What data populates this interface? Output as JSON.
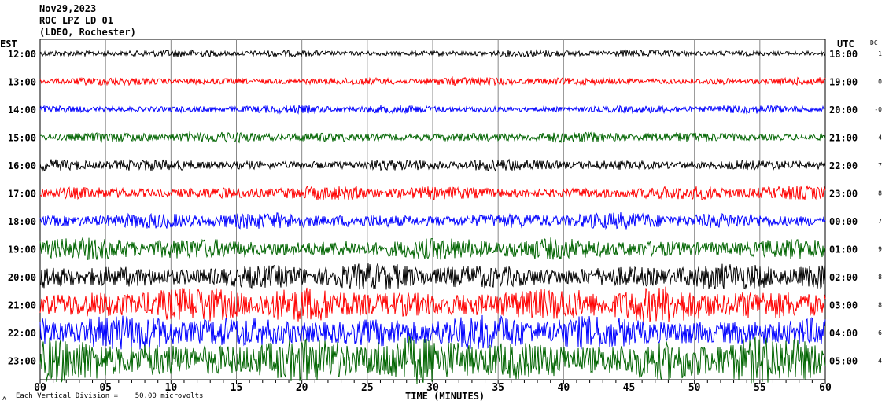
{
  "header": {
    "date": "Nov29,2023",
    "station": "ROC LPZ LD 01",
    "network": "(LDEO, Rochester)"
  },
  "footer": {
    "scale_note": "Each Vertical Division =    50.00 microvolts",
    "symbol": "ʌ"
  },
  "chart_data": {
    "type": "line",
    "title": "Nov29,2023 ROC LPZ LD 01 (LDEO, Rochester)",
    "xlabel": "TIME (MINUTES)",
    "xlim": [
      0,
      60
    ],
    "x_ticks": [
      "00",
      "05",
      "10",
      "15",
      "20",
      "25",
      "30",
      "35",
      "40",
      "45",
      "50",
      "55",
      "60"
    ],
    "left_axis_title": "EST",
    "right_axis_title": "UTC",
    "dc_title": "DC",
    "grid": "vertical every 5 minutes",
    "rows": [
      {
        "est": "12:00",
        "utc": "18:00",
        "dc": "1",
        "color": "#000000",
        "amplitude": 0.12
      },
      {
        "est": "13:00",
        "utc": "19:00",
        "dc": "0",
        "color": "#ff0000",
        "amplitude": 0.14
      },
      {
        "est": "14:00",
        "utc": "20:00",
        "dc": "-0",
        "color": "#0000ff",
        "amplitude": 0.14
      },
      {
        "est": "15:00",
        "utc": "21:00",
        "dc": "4",
        "color": "#006400",
        "amplitude": 0.18
      },
      {
        "est": "16:00",
        "utc": "22:00",
        "dc": "7",
        "color": "#000000",
        "amplitude": 0.2
      },
      {
        "est": "17:00",
        "utc": "23:00",
        "dc": "8",
        "color": "#ff0000",
        "amplitude": 0.24
      },
      {
        "est": "18:00",
        "utc": "00:00",
        "dc": "7",
        "color": "#0000ff",
        "amplitude": 0.28
      },
      {
        "est": "19:00",
        "utc": "01:00",
        "dc": "9",
        "color": "#006400",
        "amplitude": 0.38
      },
      {
        "est": "20:00",
        "utc": "02:00",
        "dc": "8",
        "color": "#000000",
        "amplitude": 0.45
      },
      {
        "est": "21:00",
        "utc": "03:00",
        "dc": "8",
        "color": "#ff0000",
        "amplitude": 0.6
      },
      {
        "est": "22:00",
        "utc": "04:00",
        "dc": "6",
        "color": "#0000ff",
        "amplitude": 0.6
      },
      {
        "est": "23:00",
        "utc": "05:00",
        "dc": "4",
        "color": "#006400",
        "amplitude": 0.8
      }
    ]
  }
}
